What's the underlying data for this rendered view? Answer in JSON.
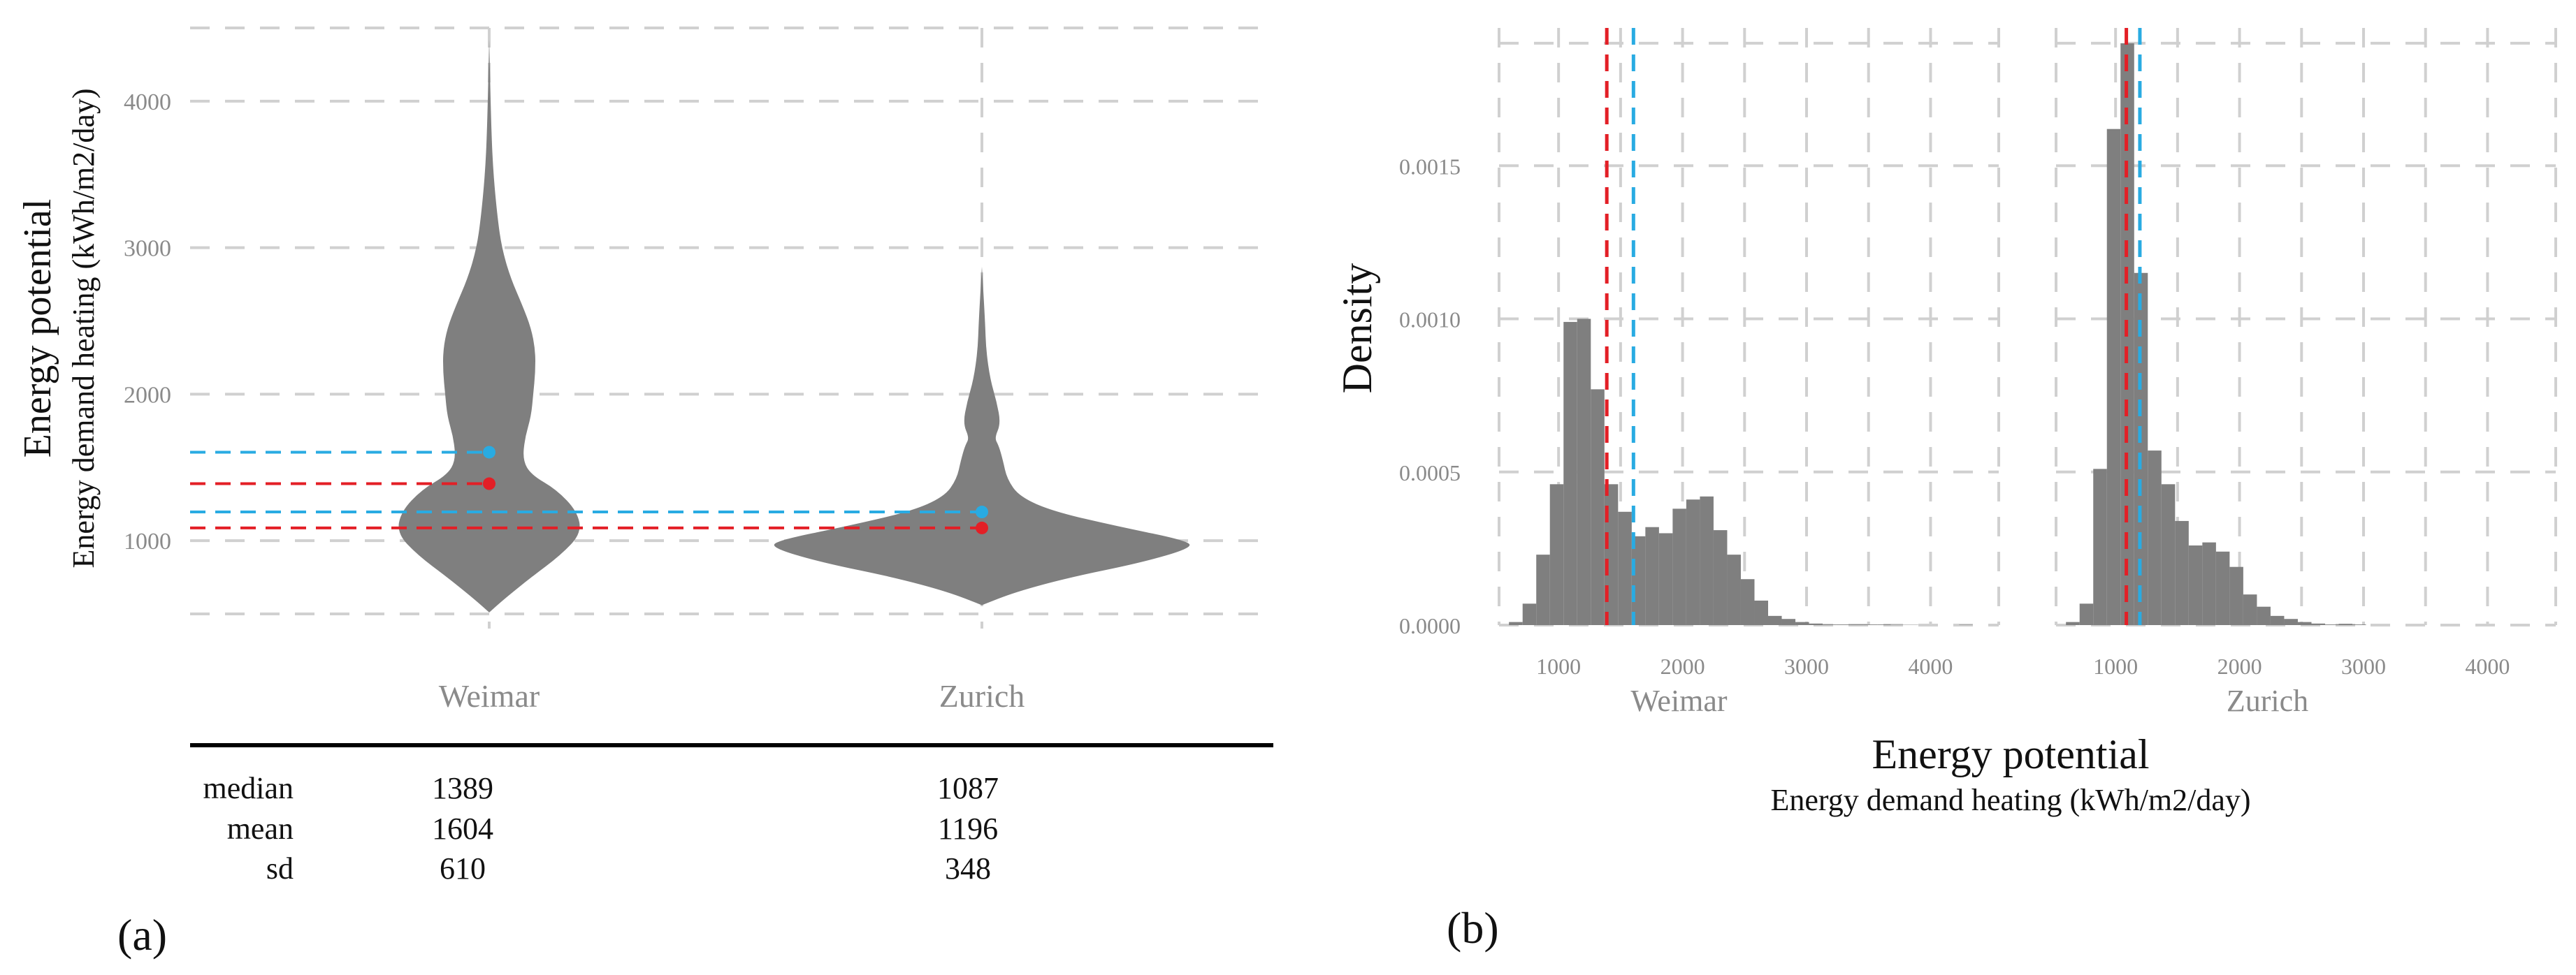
{
  "colors": {
    "violin_fill": "#7f7f7f",
    "hist_fill": "#7f7f7f",
    "mean": "#29abe2",
    "median": "#e31f26",
    "grid": "#d0d0d0"
  },
  "panel_a": {
    "label": "(a)",
    "ylabel_main": "Energy potential",
    "ylabel_sub": "Energy demand heating (kWh/m2/day)",
    "yticks": [
      "1000",
      "2000",
      "3000",
      "4000"
    ],
    "table": {
      "row_labels": [
        "median",
        "mean",
        "sd"
      ],
      "columns": [
        {
          "name": "Weimar",
          "values": [
            "1389",
            "1604",
            "610"
          ]
        },
        {
          "name": "Zurich",
          "values": [
            "1087",
            "1196",
            "348"
          ]
        }
      ]
    }
  },
  "panel_b": {
    "label": "(b)",
    "ylabel": "Density",
    "xlabel_main": "Energy potential",
    "xlabel_sub": "Energy demand heating (kWh/m2/day)",
    "yticks": [
      "0.0000",
      "0.0005",
      "0.0010",
      "0.0015"
    ],
    "xticks": [
      "1000",
      "2000",
      "3000",
      "4000"
    ]
  },
  "chart_data": [
    {
      "type": "violin",
      "title": "",
      "ylabel": "Energy potential / Energy demand heating (kWh/m2/day)",
      "ylim": [
        400,
        4500
      ],
      "categories": [
        "Weimar",
        "Zurich"
      ],
      "violins": [
        {
          "name": "Weimar",
          "range": [
            510,
            4420
          ],
          "median": 1389,
          "mean": 1604,
          "sd": 610,
          "profile": [
            [
              510,
              0.0
            ],
            [
              600,
              0.07
            ],
            [
              750,
              0.2
            ],
            [
              900,
              0.34
            ],
            [
              1050,
              0.44
            ],
            [
              1200,
              0.42
            ],
            [
              1350,
              0.32
            ],
            [
              1450,
              0.2
            ],
            [
              1550,
              0.16
            ],
            [
              1700,
              0.17
            ],
            [
              1850,
              0.2
            ],
            [
              2000,
              0.21
            ],
            [
              2150,
              0.22
            ],
            [
              2300,
              0.22
            ],
            [
              2450,
              0.2
            ],
            [
              2600,
              0.16
            ],
            [
              2800,
              0.1
            ],
            [
              3000,
              0.06
            ],
            [
              3200,
              0.04
            ],
            [
              3500,
              0.02
            ],
            [
              3800,
              0.01
            ],
            [
              4420,
              0.0
            ]
          ]
        },
        {
          "name": "Zurich",
          "range": [
            560,
            2870
          ],
          "median": 1087,
          "mean": 1196,
          "sd": 348,
          "profile": [
            [
              560,
              0.0
            ],
            [
              650,
              0.16
            ],
            [
              750,
              0.42
            ],
            [
              850,
              0.76
            ],
            [
              950,
              1.0
            ],
            [
              1000,
              0.98
            ],
            [
              1100,
              0.64
            ],
            [
              1200,
              0.34
            ],
            [
              1300,
              0.18
            ],
            [
              1420,
              0.12
            ],
            [
              1550,
              0.1
            ],
            [
              1650,
              0.08
            ],
            [
              1700,
              0.06
            ],
            [
              1800,
              0.09
            ],
            [
              1950,
              0.07
            ],
            [
              2100,
              0.04
            ],
            [
              2300,
              0.02
            ],
            [
              2500,
              0.015
            ],
            [
              2870,
              0.0
            ]
          ]
        }
      ]
    },
    {
      "type": "bar",
      "title": "Weimar",
      "xlabel": "Energy potential / Energy demand heating (kWh/m2/day)",
      "ylabel": "Density",
      "xlim": [
        520,
        4550
      ],
      "ylim": [
        0,
        0.00195
      ],
      "bin_width": 110,
      "bin_start": 600,
      "values": [
        1e-05,
        7e-05,
        0.00023,
        0.00046,
        0.00099,
        0.001,
        0.00077,
        0.00046,
        0.00037,
        0.00029,
        0.00032,
        0.0003,
        0.00038,
        0.00041,
        0.00042,
        0.00031,
        0.00023,
        0.00015,
        8e-05,
        3e-05,
        2e-05,
        1e-05,
        5e-06,
        2e-06,
        2e-06,
        2e-06,
        2e-06,
        2e-06,
        1e-06,
        1e-06,
        0.0,
        0.0,
        0.0,
        1e-06
      ],
      "median": 1389,
      "mean": 1604
    },
    {
      "type": "bar",
      "title": "Zurich",
      "xlabel": "Energy potential / Energy demand heating (kWh/m2/day)",
      "ylabel": "Density",
      "xlim": [
        520,
        4550
      ],
      "ylim": [
        0,
        0.00195
      ],
      "bin_width": 110,
      "bin_start": 600,
      "values": [
        1e-05,
        7e-05,
        0.00051,
        0.00162,
        0.0019,
        0.00115,
        0.00057,
        0.00046,
        0.00034,
        0.00026,
        0.00027,
        0.00024,
        0.00019,
        0.0001,
        6e-05,
        3e-05,
        2e-05,
        1e-05,
        5e-06,
        2e-06,
        4e-06,
        2e-06
      ],
      "median": 1087,
      "mean": 1196
    }
  ]
}
